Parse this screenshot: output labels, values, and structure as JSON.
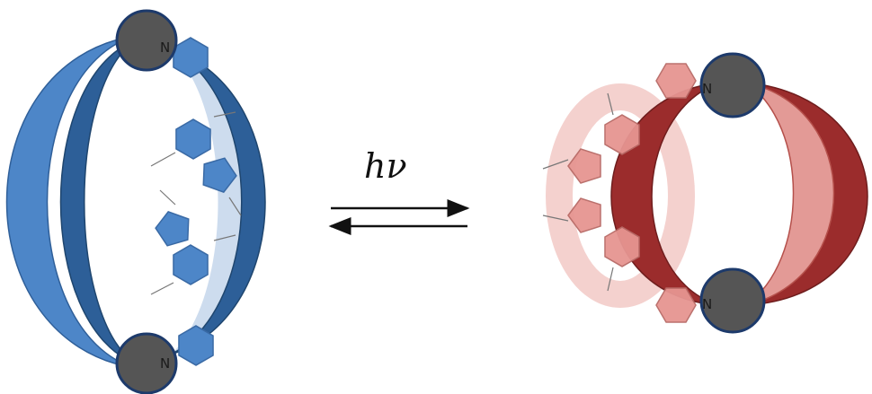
{
  "arrow_label": "hν",
  "left_structure": {
    "atoms": [
      "N",
      "N"
    ]
  },
  "right_structure": {
    "atoms": [
      "N",
      "N"
    ]
  }
}
